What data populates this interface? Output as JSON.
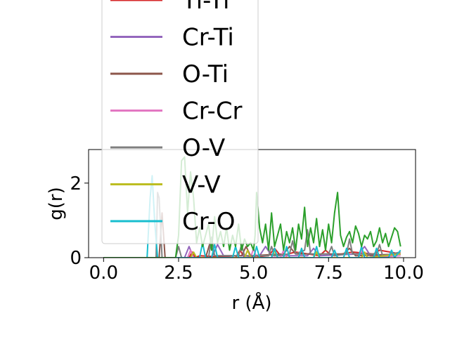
{
  "chart_data": {
    "type": "line",
    "title": "",
    "xlabel": "r (Å)",
    "ylabel": "g(r)",
    "xlim": [
      -0.5,
      10.4
    ],
    "ylim": [
      0,
      2.9
    ],
    "xticks": [
      0.0,
      2.5,
      5.0,
      7.5,
      10.0
    ],
    "xtick_labels": [
      "0.0",
      "2.5",
      "5.0",
      "7.5",
      "10.0"
    ],
    "yticks": [
      0,
      2
    ],
    "ytick_labels": [
      "0",
      "2"
    ],
    "grid": false,
    "legend_placement": "upper-left (extends above plot area)",
    "series": [
      {
        "name": "Ti-Ti",
        "color": "#d62728",
        "x": [
          0,
          2.85,
          2.95,
          3.05,
          3.2,
          4.4,
          4.55,
          4.7,
          5.5,
          5.7,
          5.9,
          6.4,
          7.2,
          7.4,
          7.6,
          8.3,
          9.0,
          9.2,
          9.9
        ],
        "y": [
          0,
          0,
          0.15,
          0.0,
          0.05,
          0.0,
          0.2,
          0.0,
          0.05,
          0.25,
          0.05,
          0.15,
          0.05,
          0.2,
          0.05,
          0.15,
          0.1,
          0.2,
          0.1
        ]
      },
      {
        "name": "Cr-Ti",
        "color": "#9467bd",
        "x": [
          0,
          2.7,
          2.85,
          3.0,
          3.6,
          3.8,
          4.0,
          5.2,
          5.4,
          5.6,
          6.8,
          7.0,
          7.2,
          8.5,
          8.7,
          8.9,
          9.9
        ],
        "y": [
          0,
          0,
          0.3,
          0.0,
          0.0,
          0.35,
          0.05,
          0.05,
          0.3,
          0.05,
          0.05,
          0.25,
          0.05,
          0.1,
          0.3,
          0.05,
          0.1
        ]
      },
      {
        "name": "O-Ti",
        "color": "#8c564b",
        "x": [
          0,
          1.85,
          1.95,
          2.05,
          3.4,
          3.55,
          3.7,
          4.6,
          4.75,
          4.9,
          6.0,
          6.2,
          6.4,
          8.0,
          8.2,
          8.4,
          9.9
        ],
        "y": [
          0,
          0,
          1.2,
          0.0,
          0.0,
          0.4,
          0.05,
          0.05,
          0.3,
          0.05,
          0.1,
          0.3,
          0.1,
          0.1,
          0.25,
          0.05,
          0.1
        ]
      },
      {
        "name": "Cr-Cr",
        "color": "#e377c2",
        "x": [
          0,
          2.8,
          2.9,
          3.0,
          4.9,
          5.0,
          5.1,
          5.9,
          6.0,
          6.1,
          8.5,
          8.6,
          8.7,
          9.9
        ],
        "y": [
          0,
          0,
          0.2,
          0.0,
          0.0,
          0.25,
          0.0,
          0.0,
          0.2,
          0.0,
          0.0,
          0.2,
          0.0,
          0.05
        ]
      },
      {
        "name": "O-V",
        "color": "#7f7f7f",
        "x": [
          0,
          1.75,
          1.8,
          1.85,
          1.95,
          2.4,
          2.5,
          2.6,
          3.5,
          3.6,
          3.7,
          4.5,
          4.6,
          4.7,
          5.5,
          5.6,
          5.7,
          6.2,
          6.3,
          6.4,
          6.7,
          6.8,
          6.9,
          7.5,
          7.6,
          7.7,
          8.1,
          8.2,
          8.3,
          9.1,
          9.2,
          9.3,
          9.9
        ],
        "y": [
          0,
          0,
          1.75,
          1.6,
          0.0,
          0.0,
          0.3,
          0.0,
          0.0,
          0.55,
          0.05,
          0.05,
          0.35,
          0.05,
          0.05,
          0.3,
          0.05,
          0.1,
          0.45,
          0.1,
          0.2,
          0.75,
          0.1,
          0.1,
          0.3,
          0.05,
          0.1,
          0.5,
          0.1,
          0.1,
          0.35,
          0.05,
          0.15
        ]
      },
      {
        "name": "V-V",
        "color": "#bcbd22",
        "x": [
          0,
          2.9,
          3.0,
          3.1,
          4.7,
          4.8,
          4.9,
          5.6,
          5.7,
          5.8,
          7.0,
          7.1,
          7.2,
          8.6,
          8.7,
          8.8,
          9.9
        ],
        "y": [
          0,
          0,
          0.15,
          0.0,
          0.0,
          0.2,
          0.0,
          0.0,
          0.2,
          0.0,
          0.0,
          0.15,
          0.0,
          0.0,
          0.15,
          0.0,
          0.1
        ]
      },
      {
        "name": "Cr-O",
        "color": "#17becf",
        "x": [
          0,
          1.45,
          1.55,
          1.62,
          1.7,
          1.8,
          3.2,
          3.3,
          3.4,
          3.6,
          3.7,
          3.8,
          4.3,
          4.4,
          4.5,
          5.0,
          5.1,
          5.2,
          5.6,
          5.7,
          5.8,
          6.0,
          6.1,
          6.2,
          6.5,
          6.6,
          6.7,
          7.0,
          7.1,
          7.2,
          7.6,
          7.7,
          7.8,
          8.0,
          8.1,
          8.2,
          8.5,
          8.6,
          8.7,
          9.0,
          9.1,
          9.2,
          9.5,
          9.6,
          9.7,
          9.9
        ],
        "y": [
          0,
          0,
          1.6,
          2.2,
          1.0,
          0.0,
          0.0,
          0.4,
          0.0,
          0.0,
          0.35,
          0.0,
          0.0,
          0.3,
          0.0,
          0.0,
          0.3,
          0.0,
          0.0,
          0.25,
          0.0,
          0.0,
          0.3,
          0.0,
          0.0,
          0.25,
          0.0,
          0.0,
          0.3,
          0.0,
          0.0,
          0.2,
          0.0,
          0.0,
          0.25,
          0.0,
          0.0,
          0.3,
          0.0,
          0.0,
          0.25,
          0.0,
          0.0,
          0.2,
          0.0,
          0.2
        ]
      },
      {
        "name": "",
        "color": "#2ca02c",
        "x": [
          0,
          2.4,
          2.5,
          2.6,
          2.7,
          2.8,
          2.9,
          3.0,
          3.1,
          3.2,
          3.3,
          3.4,
          3.5,
          3.6,
          3.7,
          3.8,
          3.9,
          4.0,
          4.1,
          4.2,
          4.3,
          4.4,
          4.5,
          4.6,
          4.7,
          4.8,
          4.9,
          5.0,
          5.05,
          5.1,
          5.2,
          5.3,
          5.4,
          5.5,
          5.6,
          5.7,
          5.8,
          5.9,
          6.0,
          6.1,
          6.2,
          6.3,
          6.4,
          6.5,
          6.6,
          6.7,
          6.8,
          6.9,
          7.0,
          7.1,
          7.2,
          7.3,
          7.4,
          7.5,
          7.6,
          7.7,
          7.8,
          7.9,
          8.0,
          8.1,
          8.2,
          8.3,
          8.4,
          8.5,
          8.6,
          8.7,
          8.8,
          8.9,
          9.0,
          9.1,
          9.2,
          9.3,
          9.4,
          9.5,
          9.6,
          9.7,
          9.8,
          9.9
        ],
        "y": [
          0,
          0,
          0.6,
          2.6,
          2.7,
          1.2,
          2.3,
          1.6,
          0.4,
          0.8,
          0.3,
          0.6,
          0.9,
          0.2,
          1.1,
          0.4,
          0.7,
          0.3,
          0.8,
          0.2,
          0.6,
          0.3,
          0.9,
          0.2,
          0.5,
          0.3,
          0.4,
          0.2,
          0.6,
          1.75,
          0.8,
          0.4,
          0.9,
          0.2,
          1.2,
          0.3,
          0.6,
          0.9,
          0.2,
          0.7,
          0.4,
          0.8,
          0.2,
          0.9,
          0.5,
          1.35,
          0.3,
          0.8,
          0.4,
          1.05,
          0.3,
          0.75,
          0.2,
          0.9,
          0.4,
          1.2,
          1.75,
          0.6,
          0.3,
          0.55,
          0.7,
          0.4,
          0.85,
          0.65,
          0.3,
          0.6,
          0.5,
          0.7,
          0.3,
          0.45,
          0.8,
          0.4,
          0.65,
          0.3,
          0.55,
          0.8,
          0.7,
          0.3
        ]
      }
    ]
  }
}
